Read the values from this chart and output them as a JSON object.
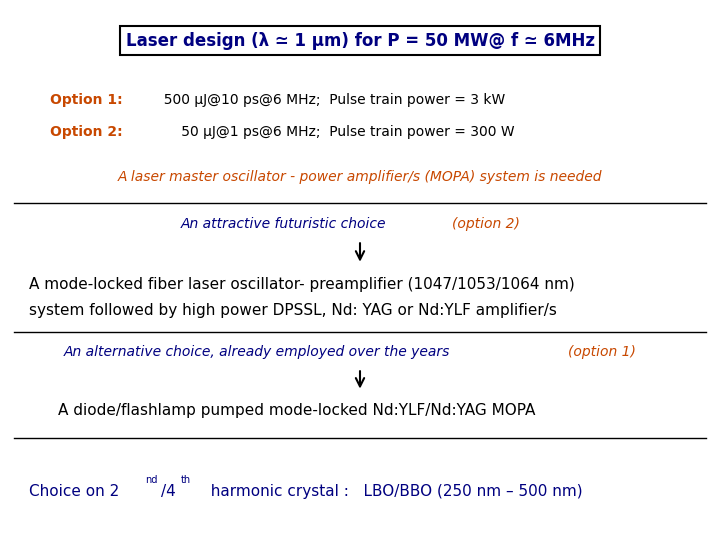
{
  "bg_color": "#ffffff",
  "title_box_text": "Laser design (λ ≃ 1 μm) for P = 50 MW@ f ≃ 6MHz",
  "title_box_color": "#000080",
  "title_box_border": "#000000",
  "option1_label": "Option 1:",
  "option1_text": "  500 μJ@10 ps@6 MHz;  Pulse train power = 3 kW",
  "option2_label": "Option 2:",
  "option2_text": "      50 μJ@1 ps@6 MHz;  Pulse train power = 300 W",
  "option_label_color": "#c84800",
  "option_text_color": "#000000",
  "mopa_text": "A laser master oscillator - power amplifier/s (MOPA) system is needed",
  "mopa_color": "#c84800",
  "futuristic_label": "An attractive futuristic choice ",
  "futuristic_option": "(option 2)",
  "futuristic_color": "#000080",
  "futuristic_option_color": "#c84800",
  "fiber_text1": "A mode-locked fiber laser oscillator- preamplifier (1047/1053/1064 nm)",
  "fiber_text2": "system followed by high power DPSSL, Nd: YAG or Nd:YLF amplifier/s",
  "fiber_color": "#000000",
  "alternative_label": "An alternative choice, already employed over the years ",
  "alternative_option": "(option 1)",
  "alternative_color": "#000080",
  "alternative_option_color": "#c84800",
  "diode_text": "A diode/flashlamp pumped mode-locked Nd:YLF/Nd:YAG MOPA",
  "diode_color": "#000000",
  "choice_prefix": "Choice on 2",
  "choice_super1": "nd",
  "choice_slash_4": "/4",
  "choice_super2": "th",
  "choice_suffix": "  harmonic crystal :   LBO/BBO (250 nm – 500 nm)",
  "choice_color": "#000080",
  "line_color": "#000000",
  "arrow_color": "#000000",
  "fs_title": 12,
  "fs_main": 10,
  "fs_options": 10,
  "fs_fiber": 11
}
